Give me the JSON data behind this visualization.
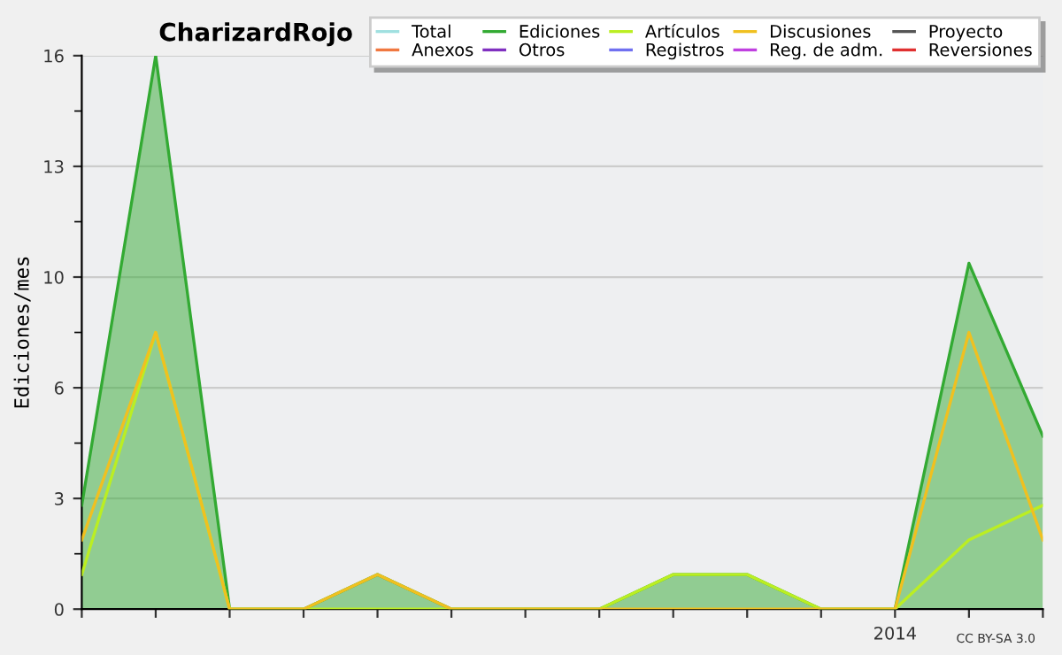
{
  "chart_data": {
    "type": "line",
    "title": "CharizardRojo",
    "ylabel": "Ediciones/mes",
    "categories": [
      null,
      null,
      null,
      null,
      null,
      null,
      null,
      null,
      null,
      null,
      null,
      "2014",
      null,
      null
    ],
    "series": [
      {
        "name": "Total",
        "color": "#a0e0e0",
        "values": [
          null,
          null,
          null,
          null,
          null,
          null,
          null,
          null,
          null,
          null,
          null,
          null,
          null,
          null
        ]
      },
      {
        "name": "Anexos",
        "color": "#f07840",
        "values": [
          null,
          null,
          null,
          null,
          null,
          null,
          null,
          null,
          null,
          null,
          null,
          null,
          null,
          null
        ]
      },
      {
        "name": "Ediciones",
        "color": "#33aa33",
        "type": "area",
        "values": [
          3,
          16,
          0,
          0,
          1,
          0,
          0,
          0,
          1,
          1,
          0,
          0,
          10,
          5
        ]
      },
      {
        "name": "Otros",
        "color": "#8030c0",
        "values": [
          null,
          null,
          null,
          null,
          null,
          null,
          null,
          null,
          null,
          null,
          null,
          null,
          null,
          null
        ]
      },
      {
        "name": "Artículos",
        "color": "#bbee22",
        "values": [
          1,
          8,
          0,
          0,
          0,
          0,
          0,
          0,
          1,
          1,
          0,
          0,
          2,
          3
        ]
      },
      {
        "name": "Registros",
        "color": "#7070f0",
        "values": [
          null,
          null,
          null,
          null,
          null,
          null,
          null,
          null,
          null,
          null,
          null,
          null,
          null,
          null
        ]
      },
      {
        "name": "Discusiones",
        "color": "#f0c020",
        "values": [
          2,
          8,
          0,
          0,
          1,
          0,
          0,
          0,
          0,
          0,
          0,
          0,
          8,
          2
        ]
      },
      {
        "name": "Reg. de adm.",
        "color": "#c040e0",
        "values": [
          null,
          null,
          null,
          null,
          null,
          null,
          null,
          null,
          null,
          null,
          null,
          null,
          null,
          null
        ]
      },
      {
        "name": "Proyecto",
        "color": "#555555",
        "values": [
          null,
          null,
          null,
          null,
          null,
          null,
          null,
          null,
          null,
          null,
          null,
          null,
          null,
          null
        ]
      },
      {
        "name": "Reversiones",
        "color": "#e03030",
        "values": [
          null,
          null,
          null,
          null,
          null,
          null,
          null,
          null,
          null,
          null,
          null,
          null,
          null,
          null
        ]
      }
    ],
    "ylim": [
      0,
      16
    ],
    "yticks": [
      0,
      {
        "value": 1.6,
        "label": null
      },
      {
        "value": 3.2,
        "label": "3"
      },
      {
        "value": 4.8,
        "label": null
      },
      {
        "value": 6.4,
        "label": "6"
      },
      {
        "value": 8.0,
        "label": null
      },
      {
        "value": 9.6,
        "label": "10"
      },
      {
        "value": 11.2,
        "label": null
      },
      {
        "value": 12.8,
        "label": "13"
      },
      {
        "value": 14.4,
        "label": null
      },
      16
    ],
    "grid": "y",
    "legend": "top right",
    "annotations": [
      "CC BY-SA 3.0"
    ]
  }
}
